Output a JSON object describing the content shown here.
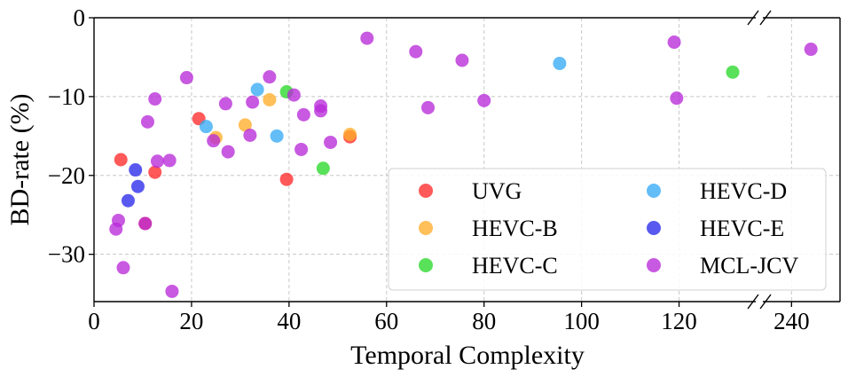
{
  "chart_data": {
    "type": "scatter",
    "title": "",
    "xlabel": "Temporal Complexity",
    "ylabel": "BD-rate (%)",
    "ylim": [
      -36,
      0
    ],
    "y_ticks": [
      0,
      -10,
      -20,
      -30
    ],
    "y_tick_labels": [
      "0",
      "−10",
      "−20",
      "−30"
    ],
    "x_broken_axis": true,
    "x_segments": [
      {
        "range": [
          0,
          135
        ],
        "ticks": [
          0,
          20,
          40,
          60,
          80,
          100,
          120
        ],
        "tick_labels": [
          "0",
          "20",
          "40",
          "60",
          "80",
          "100",
          "120"
        ]
      },
      {
        "range": [
          235,
          250
        ],
        "ticks": [
          240
        ],
        "tick_labels": [
          "240"
        ]
      }
    ],
    "grid": true,
    "legend": {
      "position": "bottom-right",
      "columns": 2
    },
    "series": [
      {
        "name": "UVG",
        "color": "#ff2a2a",
        "points": [
          [
            5.5,
            -18
          ],
          [
            12.5,
            -19.6
          ],
          [
            10.5,
            -26.1
          ],
          [
            21.5,
            -12.8
          ],
          [
            39.5,
            -20.5
          ],
          [
            52.5,
            -15.1
          ]
        ]
      },
      {
        "name": "HEVC-B",
        "color": "#ffad2a",
        "points": [
          [
            25,
            -15.2
          ],
          [
            31,
            -13.6
          ],
          [
            36,
            -10.4
          ],
          [
            52.5,
            -14.8
          ]
        ]
      },
      {
        "name": "HEVC-C",
        "color": "#2ad82a",
        "points": [
          [
            39.5,
            -9.4
          ],
          [
            47,
            -19.1
          ],
          [
            131,
            -6.9
          ]
        ]
      },
      {
        "name": "HEVC-D",
        "color": "#37aaf5",
        "points": [
          [
            23,
            -13.8
          ],
          [
            33.5,
            -9.1
          ],
          [
            37.5,
            -15
          ],
          [
            95.5,
            -5.8
          ]
        ]
      },
      {
        "name": "HEVC-E",
        "color": "#2a2aeb",
        "points": [
          [
            7,
            -23.2
          ],
          [
            8.5,
            -19.3
          ],
          [
            9,
            -21.4
          ]
        ]
      },
      {
        "name": "MCL-JCV",
        "color": "#b92ad8",
        "points": [
          [
            4.5,
            -26.8
          ],
          [
            5,
            -25.7
          ],
          [
            6,
            -31.7
          ],
          [
            10.5,
            -26.1
          ],
          [
            11,
            -13.2
          ],
          [
            12.5,
            -10.3
          ],
          [
            13,
            -18.2
          ],
          [
            15.5,
            -18.1
          ],
          [
            16,
            -34.7
          ],
          [
            19,
            -7.6
          ],
          [
            24.5,
            -15.6
          ],
          [
            27,
            -10.9
          ],
          [
            27.5,
            -17
          ],
          [
            32,
            -14.9
          ],
          [
            32.5,
            -10.7
          ],
          [
            36,
            -7.5
          ],
          [
            41,
            -9.8
          ],
          [
            42.5,
            -16.7
          ],
          [
            43,
            -12.3
          ],
          [
            46.5,
            -11.8
          ],
          [
            46.5,
            -11.2
          ],
          [
            48.5,
            -15.8
          ],
          [
            56,
            -2.6
          ],
          [
            66,
            -4.3
          ],
          [
            68.5,
            -11.4
          ],
          [
            75.5,
            -5.4
          ],
          [
            80,
            -10.5
          ],
          [
            119,
            -3.1
          ],
          [
            119.5,
            -10.2
          ],
          [
            244,
            -4
          ]
        ]
      }
    ]
  }
}
